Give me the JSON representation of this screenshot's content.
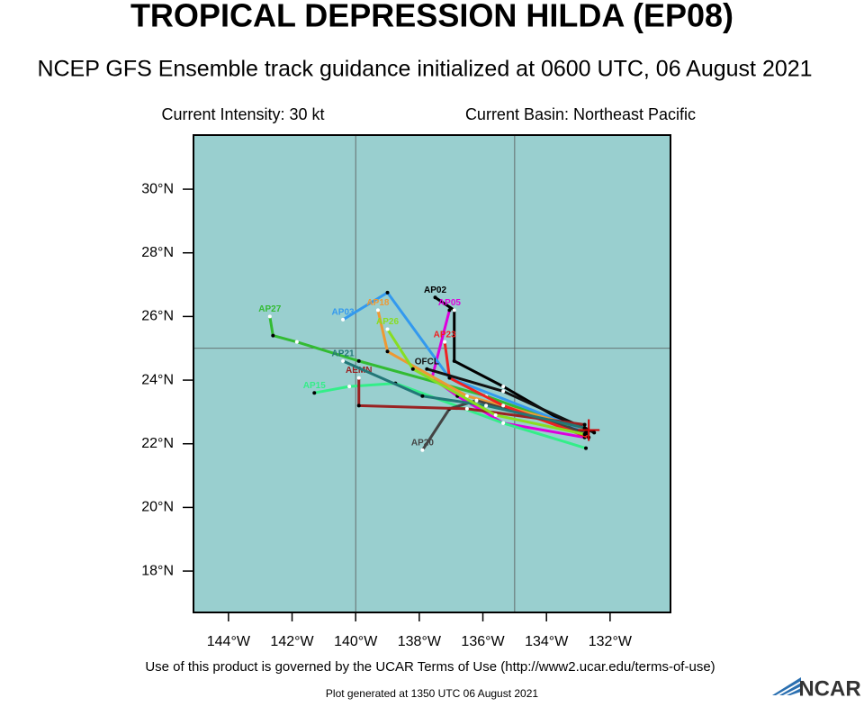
{
  "map": {
    "title": "TROPICAL DEPRESSION HILDA (EP08)",
    "subtitle": "NCEP GFS Ensemble track guidance initialized at 0600 UTC, 06 August 2021",
    "intensity": "Current Intensity: 30 kt",
    "basin": "Current Basin: Northeast Pacific",
    "terms": "Use of this product is governed by the UCAR Terms of Use (http://www2.ucar.edu/terms-of-use)",
    "generated": "Plot generated at 1350 UTC   06 August 2021",
    "logo": "NCAR",
    "xlim": [
      -145.1,
      -130.1
    ],
    "ylim": [
      16.7,
      31.7
    ],
    "xticks": [
      {
        "value": -144,
        "label": "144°W"
      },
      {
        "value": -142,
        "label": "142°W"
      },
      {
        "value": -140,
        "label": "140°W"
      },
      {
        "value": -138,
        "label": "138°W"
      },
      {
        "value": -136,
        "label": "136°W"
      },
      {
        "value": -134,
        "label": "134°W"
      },
      {
        "value": -132,
        "label": "132°W"
      }
    ],
    "yticks": [
      {
        "value": 18,
        "label": "18°N"
      },
      {
        "value": 20,
        "label": "20°N"
      },
      {
        "value": 22,
        "label": "22°N"
      },
      {
        "value": 24,
        "label": "24°N"
      },
      {
        "value": 26,
        "label": "26°N"
      },
      {
        "value": 28,
        "label": "28°N"
      },
      {
        "value": 30,
        "label": "30°N"
      }
    ],
    "grid_lon": [
      -140,
      -135
    ],
    "grid_lat": [
      25
    ],
    "ocean_color": "#99cfcf",
    "current_position": {
      "lon": -132.67,
      "lat": 22.43,
      "color": "#cc0000"
    },
    "tracks": [
      {
        "name": "AP27",
        "color": "#33bb33",
        "lon": [
          -132.76,
          -135.9,
          -139.9,
          -141.85,
          -142.6,
          -142.7
        ],
        "lat": [
          22.37,
          23.5,
          24.6,
          25.2,
          25.4,
          26.0
        ]
      },
      {
        "name": "AP02",
        "color": "#000000",
        "lon": [
          -132.76,
          -135.36,
          -136.9,
          -136.9,
          -137.5
        ],
        "lat": [
          22.3,
          23.8,
          24.6,
          26.2,
          26.6
        ]
      },
      {
        "name": "AP05",
        "color": "#dd00dd",
        "lon": [
          -132.8,
          -135.36,
          -136.8,
          -137.6,
          -137.05
        ],
        "lat": [
          22.2,
          22.65,
          23.5,
          24.07,
          26.2
        ]
      },
      {
        "name": "AP03",
        "color": "#3399ee",
        "lon": [
          -132.76,
          -137.05,
          -139.0,
          -140.4
        ],
        "lat": [
          22.4,
          24.07,
          26.75,
          25.9
        ]
      },
      {
        "name": "AP18",
        "color": "#ee9933",
        "lon": [
          -132.76,
          -136.5,
          -139.0,
          -139.3
        ],
        "lat": [
          22.47,
          23.5,
          24.9,
          26.2
        ]
      },
      {
        "name": "AP15",
        "color": "#33ee88",
        "lon": [
          -132.76,
          -135.36,
          -138.75,
          -140.2,
          -141.3
        ],
        "lat": [
          21.86,
          22.65,
          23.9,
          23.8,
          23.6
        ]
      },
      {
        "name": "AP20",
        "color": "#444444",
        "lon": [
          -132.76,
          -136.2,
          -137.05,
          -137.9
        ],
        "lat": [
          22.35,
          23.36,
          23.1,
          21.8
        ]
      },
      {
        "name": "AP23",
        "color": "#ee2222",
        "lon": [
          -132.67,
          -135.36,
          -137.05,
          -137.2
        ],
        "lat": [
          22.2,
          23.2,
          24.07,
          25.2
        ]
      },
      {
        "name": "OFCL",
        "color": "#111111",
        "lon": [
          -132.5,
          -135.36,
          -137.76
        ],
        "lat": [
          22.35,
          23.65,
          24.35
        ]
      },
      {
        "name": "AEMN",
        "color": "#992222",
        "lon": [
          -132.8,
          -136.5,
          -139.9,
          -139.9
        ],
        "lat": [
          22.6,
          23.1,
          23.2,
          24.07
        ]
      },
      {
        "name": "AP21",
        "color": "#227777",
        "lon": [
          -132.8,
          -135.9,
          -137.9,
          -140.4
        ],
        "lat": [
          22.5,
          23.2,
          23.5,
          24.6
        ]
      },
      {
        "name": "AP26",
        "color": "#88dd22",
        "lon": [
          -132.8,
          -135.6,
          -138.2,
          -139.0
        ],
        "lat": [
          22.3,
          22.9,
          24.35,
          25.6
        ]
      }
    ]
  }
}
